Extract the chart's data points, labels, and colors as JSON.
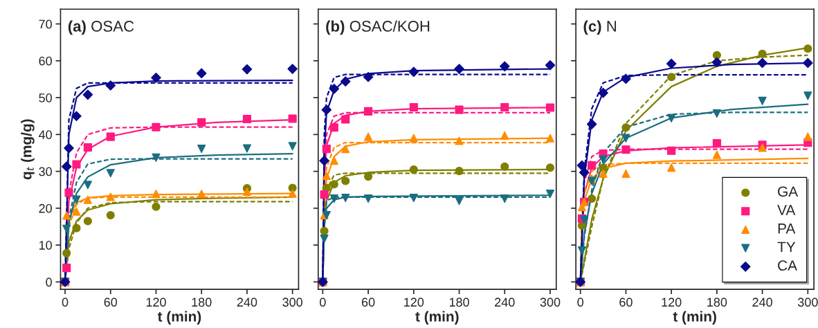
{
  "chart_data": [
    {
      "type": "scatter",
      "title": "(a) OSAC",
      "xlabel": "t (min)",
      "ylabel": "q$_{t}$ (mg/g)",
      "xlim": [
        -6,
        308
      ],
      "ylim": [
        -2,
        74
      ],
      "xticks": [
        0,
        60,
        120,
        180,
        240,
        300
      ],
      "yticks": [
        0,
        10,
        20,
        30,
        40,
        50,
        60,
        70
      ],
      "x": [
        0,
        2,
        5,
        15,
        30,
        60,
        120,
        180,
        240,
        300
      ],
      "series": [
        {
          "type": "line",
          "line_style": "solid",
          "color": "#7f7f00",
          "x": [
            0,
            5,
            15,
            30,
            60,
            120,
            200,
            300
          ],
          "values": [
            0,
            11,
            16.5,
            19.5,
            21.2,
            22.3,
            22.7,
            23
          ]
        },
        {
          "type": "line",
          "line_style": "dashed",
          "color": "#7f7f00",
          "x": [
            0,
            5,
            15,
            30,
            60,
            120,
            300
          ],
          "values": [
            0,
            9,
            16,
            20,
            21.5,
            21.8,
            21.8
          ]
        },
        {
          "type": "line",
          "line_style": "solid",
          "color": "#ff1a80",
          "x": [
            0,
            5,
            15,
            30,
            60,
            120,
            200,
            300
          ],
          "values": [
            0,
            22,
            31,
            36,
            39.5,
            42,
            43.3,
            44
          ]
        },
        {
          "type": "line",
          "line_style": "dashed",
          "color": "#ff1a80",
          "x": [
            0,
            5,
            15,
            30,
            60,
            120,
            300
          ],
          "values": [
            0,
            24,
            35,
            40,
            41.8,
            42,
            42
          ]
        },
        {
          "type": "line",
          "line_style": "solid",
          "color": "#ff8c00",
          "x": [
            0,
            5,
            15,
            30,
            60,
            120,
            300
          ],
          "values": [
            0,
            17,
            21.5,
            22.8,
            23.4,
            23.7,
            24
          ]
        },
        {
          "type": "line",
          "line_style": "dashed",
          "color": "#ff8c00",
          "x": [
            0,
            5,
            15,
            30,
            60,
            300
          ],
          "values": [
            0,
            15,
            21,
            22.8,
            23,
            23
          ]
        },
        {
          "type": "line",
          "line_style": "solid",
          "color": "#1a6e80",
          "x": [
            0,
            5,
            15,
            30,
            60,
            120,
            200,
            300
          ],
          "values": [
            0,
            16,
            24,
            28.5,
            31.8,
            33.7,
            34.4,
            34.8
          ]
        },
        {
          "type": "line",
          "line_style": "dashed",
          "color": "#1a6e80",
          "x": [
            0,
            5,
            15,
            30,
            60,
            120,
            300
          ],
          "values": [
            0,
            17,
            27,
            32,
            33.3,
            33.4,
            33.4
          ]
        },
        {
          "type": "line",
          "line_style": "solid",
          "color": "#0a0a8c",
          "x": [
            0,
            5,
            15,
            30,
            60,
            120,
            300
          ],
          "values": [
            0,
            40,
            50,
            53,
            54,
            54.5,
            54.7
          ]
        },
        {
          "type": "line",
          "line_style": "dashed",
          "color": "#0a0a8c",
          "x": [
            0,
            5,
            15,
            30,
            60,
            300
          ],
          "values": [
            0,
            44,
            52.5,
            54,
            54,
            54
          ]
        },
        {
          "marker": "circle",
          "color": "#7f7f00",
          "values": [
            null,
            7.8,
            null,
            14.6,
            16.5,
            18.1,
            20.4,
            null,
            25.4,
            25.5
          ]
        },
        {
          "marker": "square",
          "color": "#ff1a80",
          "values": [
            0,
            3.8,
            24.2,
            31.9,
            36.5,
            39.4,
            42,
            43.3,
            44.2,
            44.3
          ]
        },
        {
          "marker": "triangle",
          "color": "#ff8c00",
          "values": [
            0,
            18,
            null,
            19.1,
            22.3,
            23.1,
            23.9,
            23.9,
            24.5,
            24
          ]
        },
        {
          "marker": "triangle_down",
          "color": "#1a6e80",
          "values": [
            0,
            14.4,
            null,
            22.3,
            26.3,
            29.5,
            33.7,
            36.1,
            36.2,
            36.8
          ]
        },
        {
          "marker": "diamond",
          "color": "#0a0a8c",
          "values": [
            0,
            31.3,
            36.3,
            45,
            50.8,
            53.3,
            55.4,
            56.6,
            57.7,
            57.8
          ]
        }
      ]
    },
    {
      "type": "scatter",
      "title": "(b) OSAC/KOH",
      "xlabel": "t (min)",
      "xlim": [
        -6,
        308
      ],
      "ylim": [
        -2,
        74
      ],
      "xticks": [
        0,
        60,
        120,
        180,
        240,
        300
      ],
      "yticks": [
        0,
        10,
        20,
        30,
        40,
        50,
        60,
        70
      ],
      "tick_labels": "x",
      "x": [
        0,
        2,
        5,
        15,
        30,
        60,
        120,
        180,
        240,
        300
      ],
      "series": [
        {
          "type": "line",
          "line_style": "solid",
          "color": "#7f7f00",
          "x": [
            0,
            2,
            5,
            15,
            30,
            60,
            120,
            300
          ],
          "values": [
            0,
            15,
            22,
            27,
            28.8,
            29.7,
            30.3,
            30.5
          ]
        },
        {
          "type": "line",
          "line_style": "dashed",
          "color": "#7f7f00",
          "x": [
            0,
            2,
            5,
            15,
            30,
            300
          ],
          "values": [
            0,
            17,
            25,
            29,
            29.5,
            29.5
          ]
        },
        {
          "type": "line",
          "line_style": "solid",
          "color": "#ff1a80",
          "x": [
            0,
            2,
            5,
            15,
            30,
            60,
            120,
            300
          ],
          "values": [
            0,
            28,
            37,
            43,
            45.2,
            46.3,
            47,
            47.3
          ]
        },
        {
          "type": "line",
          "line_style": "dashed",
          "color": "#ff1a80",
          "x": [
            0,
            2,
            5,
            15,
            30,
            300
          ],
          "values": [
            0,
            30,
            40,
            45,
            45.9,
            45.9
          ]
        },
        {
          "type": "line",
          "line_style": "solid",
          "color": "#ff8c00",
          "x": [
            0,
            2,
            5,
            15,
            30,
            60,
            120,
            300
          ],
          "values": [
            0,
            20,
            28,
            34,
            36.8,
            38,
            38.6,
            39
          ]
        },
        {
          "type": "line",
          "line_style": "dashed",
          "color": "#ff8c00",
          "x": [
            0,
            2,
            5,
            15,
            30,
            300
          ],
          "values": [
            0,
            22,
            31,
            36.5,
            37.8,
            37.8
          ]
        },
        {
          "type": "line",
          "line_style": "solid",
          "color": "#1a6e80",
          "x": [
            0,
            2,
            5,
            15,
            30,
            60,
            300
          ],
          "values": [
            0,
            15,
            20,
            22.3,
            23,
            23.2,
            23.5
          ]
        },
        {
          "type": "line",
          "line_style": "dashed",
          "color": "#1a6e80",
          "x": [
            0,
            2,
            5,
            15,
            300
          ],
          "values": [
            0,
            17,
            22,
            23,
            23
          ]
        },
        {
          "type": "line",
          "line_style": "solid",
          "color": "#0a0a8c",
          "x": [
            0,
            2,
            5,
            15,
            30,
            60,
            120,
            300
          ],
          "values": [
            0,
            35,
            46,
            52,
            55,
            56.5,
            57.3,
            57.8
          ]
        },
        {
          "type": "line",
          "line_style": "dashed",
          "color": "#0a0a8c",
          "x": [
            0,
            2,
            5,
            15,
            30,
            60,
            300
          ],
          "values": [
            0,
            40,
            50,
            55.5,
            56.3,
            56.3,
            56.3
          ]
        },
        {
          "marker": "circle",
          "color": "#7f7f00",
          "values": [
            null,
            13.8,
            25.5,
            26.5,
            27.4,
            28.6,
            30.5,
            30.1,
            31.3,
            31
          ]
        },
        {
          "marker": "square",
          "color": "#ff1a80",
          "values": [
            0,
            23.7,
            36.1,
            41.9,
            44.1,
            46.3,
            47.4,
            46.7,
            47.4,
            47.3
          ]
        },
        {
          "marker": "triangle",
          "color": "#ff8c00",
          "values": [
            0,
            18.1,
            28.8,
            32.9,
            36.1,
            39.4,
            39,
            38.3,
            39.7,
            39
          ]
        },
        {
          "marker": "triangle_down",
          "color": "#1a6e80",
          "values": [
            0,
            11.7,
            18.1,
            22.6,
            22.8,
            22.6,
            22.8,
            22,
            22.6,
            23.9
          ]
        },
        {
          "marker": "diamond",
          "color": "#0a0a8c",
          "values": [
            0,
            32.9,
            46.7,
            52.4,
            54.4,
            55.6,
            57,
            57.8,
            58.5,
            58.8
          ]
        }
      ]
    },
    {
      "type": "scatter",
      "title": "(c) N",
      "xlabel": "t (min)",
      "xlim": [
        -6,
        308
      ],
      "ylim": [
        -2,
        74
      ],
      "xticks": [
        0,
        60,
        120,
        180,
        240,
        300
      ],
      "yticks": [
        0,
        10,
        20,
        30,
        40,
        50,
        60,
        70
      ],
      "tick_labels": "x",
      "legend": "bottom right",
      "x": [
        0,
        2,
        5,
        15,
        30,
        60,
        120,
        180,
        240,
        300
      ],
      "series": [
        {
          "type": "line",
          "line_style": "solid",
          "color": "#7f7f00",
          "x": [
            0,
            15,
            30,
            60,
            120,
            180,
            240,
            300
          ],
          "values": [
            0,
            17,
            28,
            41,
            53,
            58.5,
            61.5,
            63.5
          ]
        },
        {
          "type": "line",
          "line_style": "dashed",
          "color": "#7f7f00",
          "x": [
            0,
            15,
            30,
            60,
            120,
            180,
            240,
            300
          ],
          "values": [
            0,
            15,
            28,
            43,
            56,
            60,
            61,
            61.5
          ]
        },
        {
          "type": "line",
          "line_style": "solid",
          "color": "#ff1a80",
          "x": [
            0,
            2,
            5,
            15,
            30,
            60,
            120,
            300
          ],
          "values": [
            0,
            15,
            24,
            31,
            34,
            35.6,
            36.4,
            37.2
          ]
        },
        {
          "type": "line",
          "line_style": "dashed",
          "color": "#ff1a80",
          "x": [
            0,
            2,
            5,
            15,
            30,
            60,
            300
          ],
          "values": [
            0,
            17,
            27,
            34,
            35.7,
            36,
            36
          ]
        },
        {
          "type": "line",
          "line_style": "solid",
          "color": "#ff8c00",
          "x": [
            0,
            2,
            5,
            15,
            30,
            60,
            120,
            300
          ],
          "values": [
            0,
            14,
            22,
            28,
            30.8,
            32.2,
            32.8,
            33.5
          ]
        },
        {
          "type": "line",
          "line_style": "dashed",
          "color": "#ff8c00",
          "x": [
            0,
            2,
            5,
            15,
            30,
            60,
            300
          ],
          "values": [
            0,
            16,
            24,
            30,
            31.8,
            32.2,
            32.2
          ]
        },
        {
          "type": "line",
          "line_style": "solid",
          "color": "#1a6e80",
          "x": [
            0,
            5,
            15,
            30,
            60,
            120,
            200,
            300
          ],
          "values": [
            0,
            13,
            24,
            32,
            39,
            44.5,
            46.8,
            48.2
          ]
        },
        {
          "type": "line",
          "line_style": "dashed",
          "color": "#1a6e80",
          "x": [
            0,
            5,
            15,
            30,
            60,
            120,
            200,
            300
          ],
          "values": [
            0,
            12,
            25,
            35,
            42,
            45.5,
            46,
            46
          ]
        },
        {
          "type": "line",
          "line_style": "solid",
          "color": "#0a0a8c",
          "x": [
            0,
            5,
            15,
            30,
            60,
            120,
            200,
            300
          ],
          "values": [
            0,
            28,
            44,
            51.5,
            55.5,
            58,
            59,
            59.4
          ]
        },
        {
          "type": "line",
          "line_style": "dashed",
          "color": "#0a0a8c",
          "x": [
            0,
            5,
            15,
            30,
            60,
            120,
            300
          ],
          "values": [
            0,
            30,
            47,
            54,
            56,
            56.2,
            56.2
          ]
        },
        {
          "name": "GA",
          "marker": "circle",
          "color": "#7f7f00",
          "values": [
            null,
            15.3,
            null,
            22.6,
            31,
            41.9,
            55.6,
            61.5,
            61.9,
            63.3
          ]
        },
        {
          "name": "VA",
          "marker": "square",
          "color": "#ff1a80",
          "values": [
            0,
            17.2,
            21.7,
            31.6,
            34.8,
            35.9,
            35.6,
            37.6,
            37.2,
            37.8
          ]
        },
        {
          "name": "PA",
          "marker": "triangle",
          "color": "#ff8c00",
          "values": [
            0,
            20.3,
            21.7,
            28,
            29.4,
            29.4,
            31,
            34.5,
            36.4,
            39.4
          ]
        },
        {
          "name": "TY",
          "marker": "triangle_down",
          "color": "#1a6e80",
          "values": [
            0,
            8.5,
            16.9,
            27.4,
            33.2,
            39,
            44.4,
            45.7,
            49.1,
            50.5
          ]
        },
        {
          "name": "CA",
          "marker": "diamond",
          "color": "#0a0a8c",
          "values": [
            0,
            31.6,
            29.7,
            42.8,
            51.3,
            55.1,
            59.2,
            59.6,
            59.4,
            59.4
          ]
        }
      ]
    }
  ]
}
